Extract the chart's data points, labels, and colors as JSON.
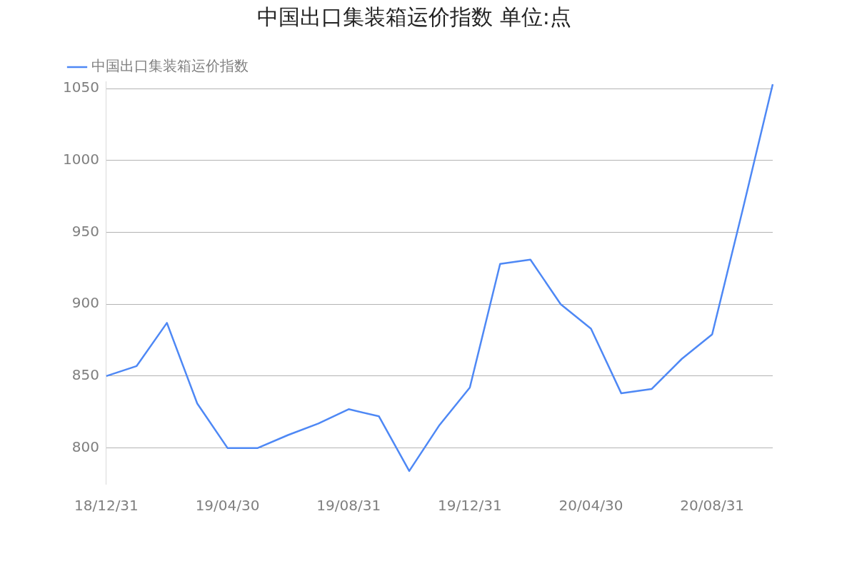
{
  "chart_data": {
    "type": "line",
    "title": "中国出口集装箱运价指数 单位:点",
    "categories": [
      "18/12/31",
      null,
      null,
      null,
      "19/04/30",
      null,
      null,
      null,
      "19/08/31",
      null,
      null,
      null,
      "19/12/31",
      null,
      null,
      null,
      "20/04/30",
      null,
      null,
      null,
      "20/08/31",
      null,
      null
    ],
    "series": [
      {
        "name": "中国出口集装箱运价指数",
        "color": "#4e88f5",
        "values": [
          850,
          857,
          887,
          831,
          800,
          800,
          809,
          817,
          827,
          822,
          784,
          816,
          842,
          928,
          931,
          900,
          883,
          838,
          841,
          862,
          879,
          965,
          1053
        ]
      }
    ],
    "ylim": [
      775,
      1055
    ],
    "yticks": [
      800,
      850,
      900,
      950,
      1000,
      1050
    ],
    "grid": "y",
    "legend": "top left",
    "marker": "none",
    "line_style": "solid"
  }
}
